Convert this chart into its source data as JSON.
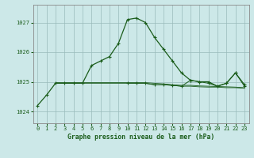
{
  "title": "Graphe pression niveau de la mer (hPa)",
  "xlim": [
    -0.5,
    23.5
  ],
  "ylim": [
    1023.6,
    1027.6
  ],
  "yticks": [
    1024,
    1025,
    1026,
    1027
  ],
  "xticks": [
    0,
    1,
    2,
    3,
    4,
    5,
    6,
    7,
    8,
    9,
    10,
    11,
    12,
    13,
    14,
    15,
    16,
    17,
    18,
    19,
    20,
    21,
    22,
    23
  ],
  "background_color": "#cce8e8",
  "grid_color": "#99bbbb",
  "line_color": "#1a5c1a",
  "series1_x": [
    0,
    1,
    2,
    3,
    4,
    5,
    6,
    7,
    8,
    9,
    10,
    11,
    12,
    13,
    14,
    15,
    16,
    17,
    18,
    19,
    20,
    21,
    22,
    23
  ],
  "series1_y": [
    1024.2,
    1024.55,
    1024.95,
    1024.95,
    1024.95,
    1024.95,
    1025.55,
    1025.7,
    1025.85,
    1026.3,
    1027.1,
    1027.15,
    1027.0,
    1026.5,
    1026.1,
    1025.7,
    1025.3,
    1025.05,
    1025.0,
    1025.0,
    1024.85,
    1024.95,
    1025.3,
    1024.9
  ],
  "series2_x": [
    2,
    3,
    4,
    5,
    6,
    7,
    8,
    9,
    10,
    11,
    12,
    13,
    14,
    15,
    16,
    17,
    18,
    19,
    20,
    21,
    22,
    23
  ],
  "series2_y": [
    1024.95,
    1024.95,
    1024.95,
    1024.95,
    1024.95,
    1024.95,
    1024.95,
    1024.95,
    1024.95,
    1024.95,
    1024.95,
    1024.9,
    1024.9,
    1024.88,
    1024.85,
    1024.85,
    1024.83,
    1024.82,
    1024.82,
    1024.8,
    1024.8,
    1024.78
  ],
  "series3_x": [
    2,
    3,
    4,
    5,
    6,
    7,
    8,
    9,
    10,
    11,
    12,
    13,
    14,
    15,
    16,
    17,
    18,
    19,
    20,
    21,
    22,
    23
  ],
  "series3_y": [
    1024.97,
    1024.97,
    1024.97,
    1024.97,
    1024.97,
    1024.97,
    1024.97,
    1024.97,
    1024.97,
    1024.97,
    1024.97,
    1024.95,
    1024.93,
    1024.9,
    1024.88,
    1024.88,
    1024.86,
    1024.85,
    1024.84,
    1024.83,
    1024.82,
    1024.8
  ],
  "series4_x": [
    10,
    11,
    12,
    13,
    14,
    15,
    16,
    17,
    18,
    19,
    20,
    21,
    22,
    23
  ],
  "series4_y": [
    1024.95,
    1024.95,
    1024.95,
    1024.9,
    1024.9,
    1024.88,
    1024.85,
    1025.05,
    1025.0,
    1024.95,
    1024.85,
    1024.95,
    1025.3,
    1024.85
  ]
}
